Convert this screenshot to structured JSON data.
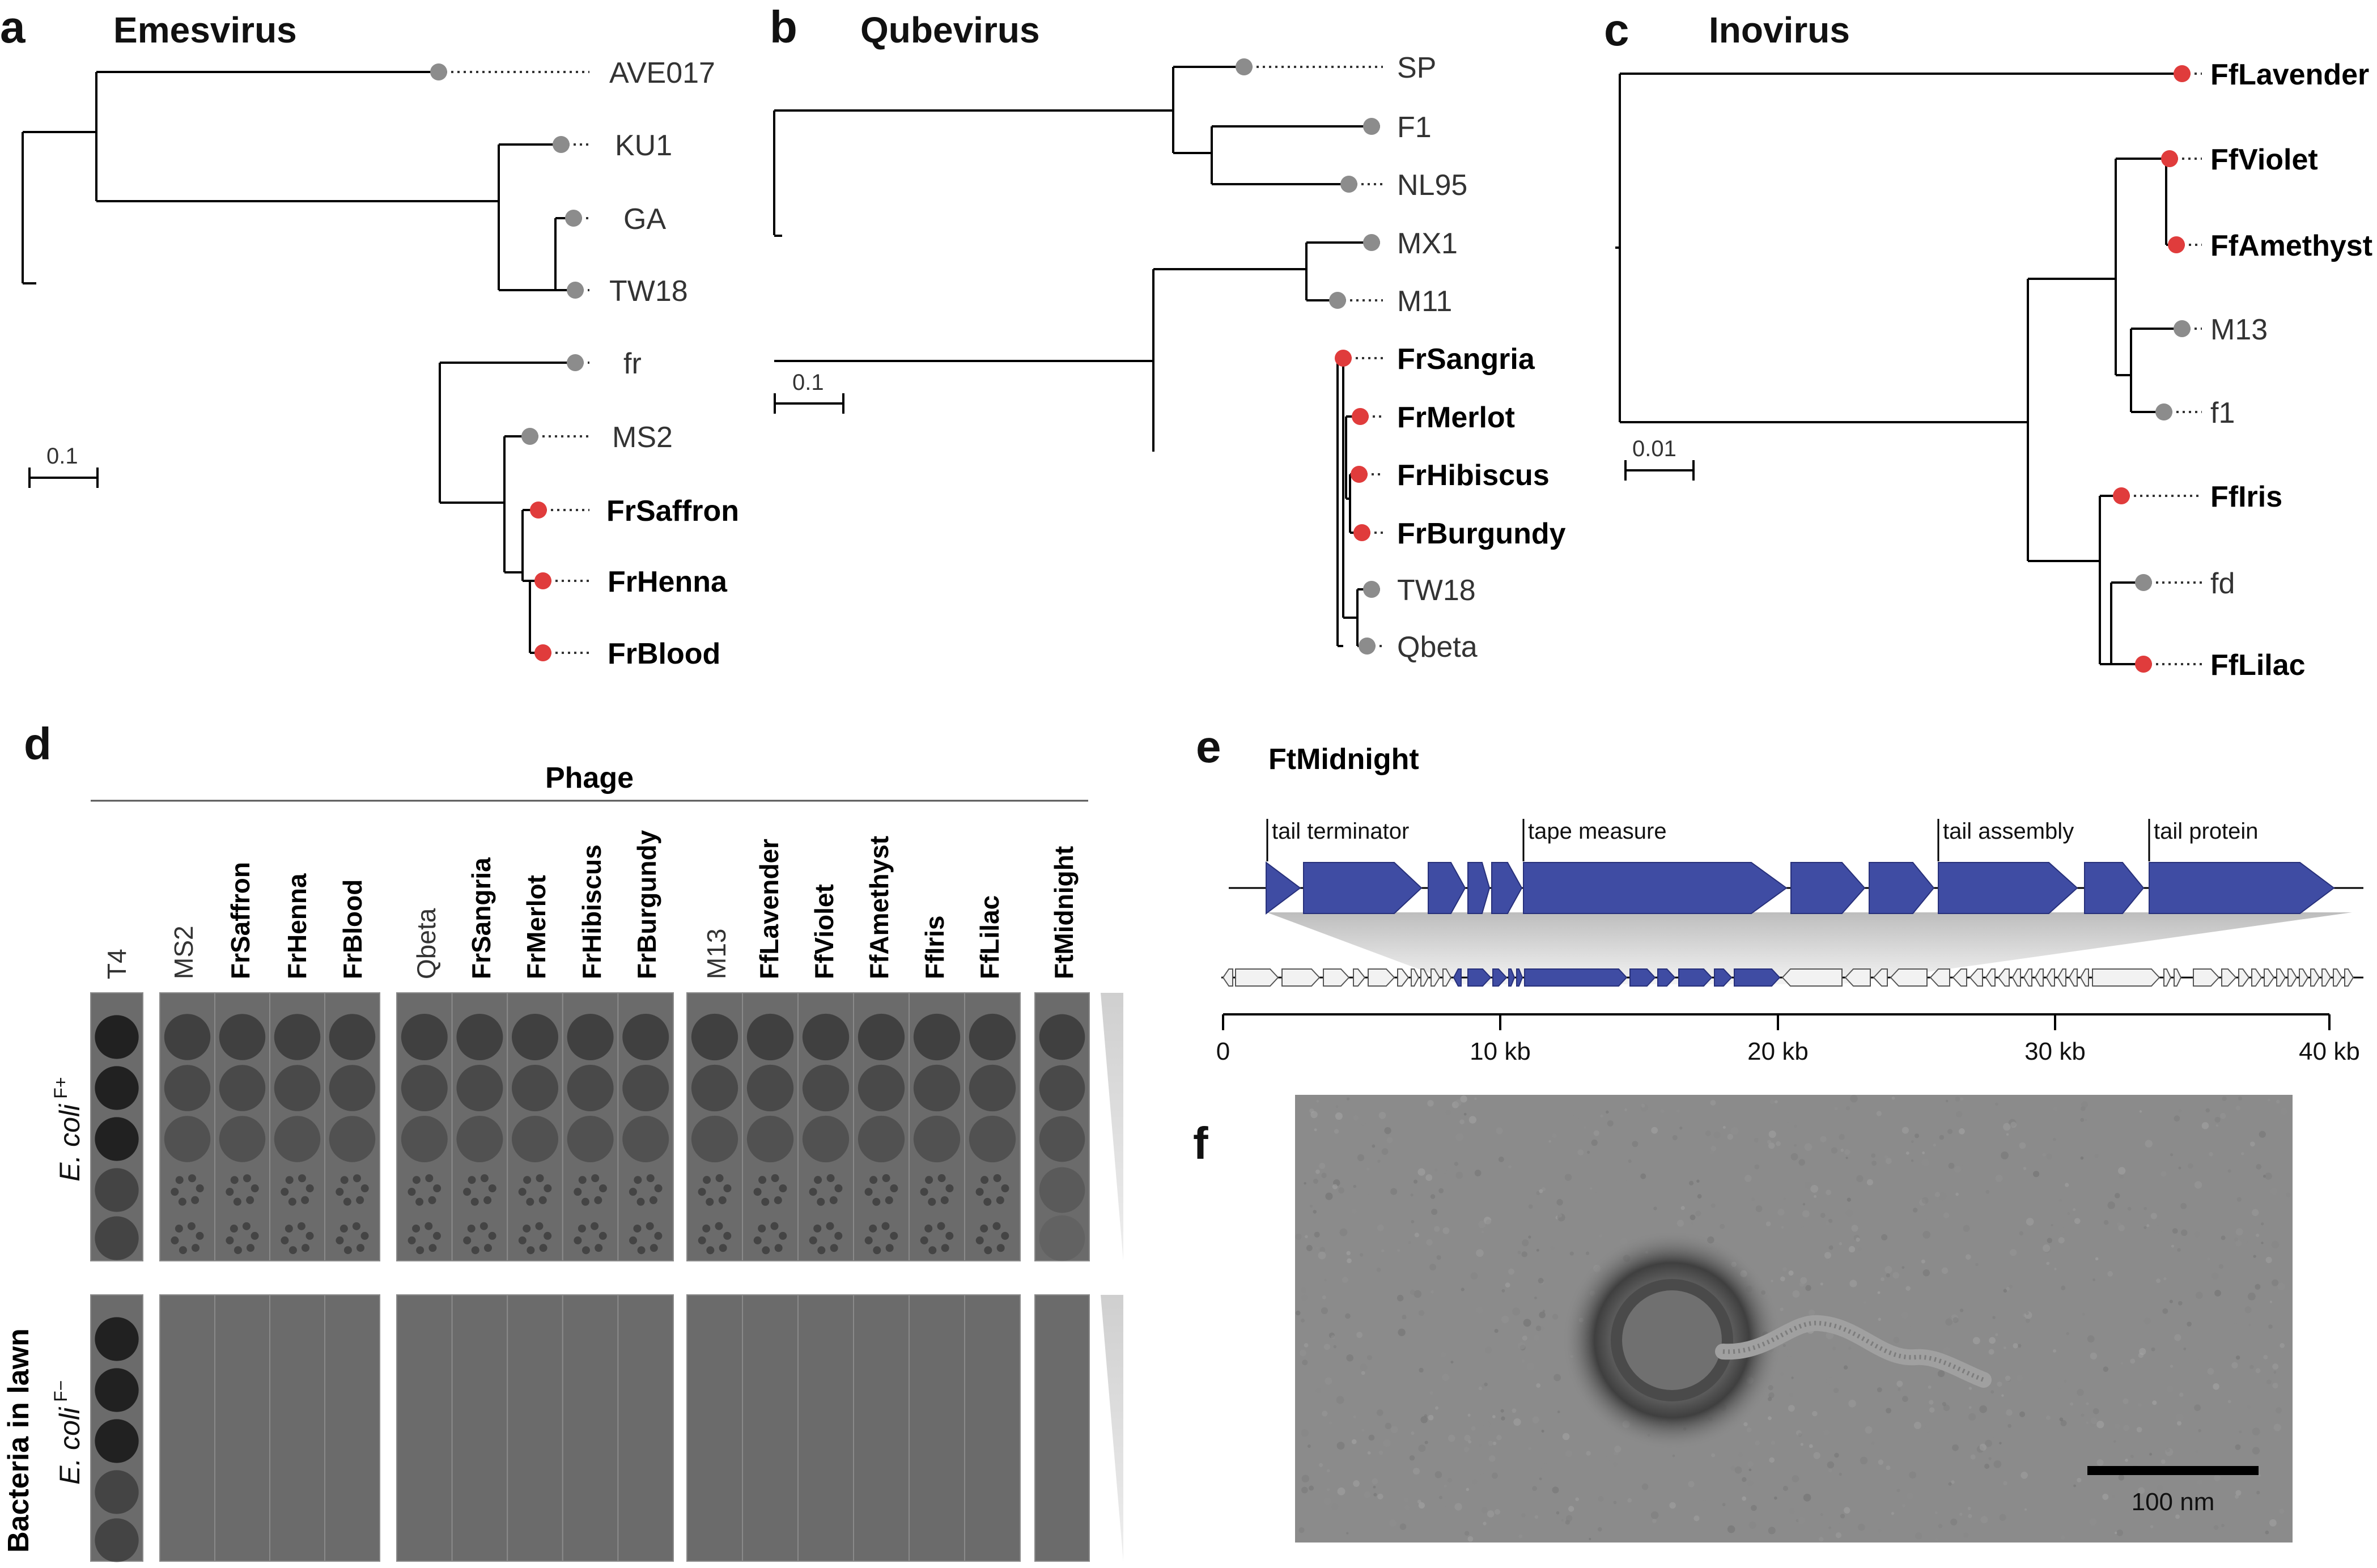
{
  "panels": {
    "a": {
      "letter": "a",
      "title": "Emesvirus",
      "leaves": [
        {
          "name": "AVE017",
          "highlight": false
        },
        {
          "name": "KU1",
          "highlight": false
        },
        {
          "name": "GA",
          "highlight": false
        },
        {
          "name": "TW18",
          "highlight": false
        },
        {
          "name": "fr",
          "highlight": false
        },
        {
          "name": "MS2",
          "highlight": false
        },
        {
          "name": "FrSaffron",
          "highlight": true
        },
        {
          "name": "FrHenna",
          "highlight": true
        },
        {
          "name": "FrBlood",
          "highlight": true
        }
      ],
      "scale_label": "0.1"
    },
    "b": {
      "letter": "b",
      "title": "Qubevirus",
      "leaves": [
        {
          "name": "SP",
          "highlight": false
        },
        {
          "name": "F1",
          "highlight": false
        },
        {
          "name": "NL95",
          "highlight": false
        },
        {
          "name": "MX1",
          "highlight": false
        },
        {
          "name": "M11",
          "highlight": false
        },
        {
          "name": "FrSangria",
          "highlight": true
        },
        {
          "name": "FrMerlot",
          "highlight": true
        },
        {
          "name": "FrHibiscus",
          "highlight": true
        },
        {
          "name": "FrBurgundy",
          "highlight": true
        },
        {
          "name": "TW18",
          "highlight": false
        },
        {
          "name": "Qbeta",
          "highlight": false
        }
      ],
      "scale_label": "0.1"
    },
    "c": {
      "letter": "c",
      "title": "Inovirus",
      "leaves": [
        {
          "name": "FfLavender",
          "highlight": true
        },
        {
          "name": "FfViolet",
          "highlight": true
        },
        {
          "name": "FfAmethyst",
          "highlight": true
        },
        {
          "name": "M13",
          "highlight": false
        },
        {
          "name": "f1",
          "highlight": false
        },
        {
          "name": "FfIris",
          "highlight": true
        },
        {
          "name": "fd",
          "highlight": false
        },
        {
          "name": "FfLilac",
          "highlight": true
        }
      ],
      "scale_label": "0.01"
    },
    "d": {
      "letter": "d",
      "phage_header": "Phage",
      "y_axis_label": "Bacteria in lawn",
      "strains": [
        {
          "italic": "E. coli",
          "superscript": "F+"
        },
        {
          "italic": "E. coli",
          "superscript": "F−"
        }
      ],
      "columns": [
        {
          "name": "T4",
          "bold": false
        },
        {
          "name": "MS2",
          "bold": false
        },
        {
          "name": "FrSaffron",
          "bold": true
        },
        {
          "name": "FrHenna",
          "bold": true
        },
        {
          "name": "FrBlood",
          "bold": true
        },
        {
          "name": "Qbeta",
          "bold": false
        },
        {
          "name": "FrSangria",
          "bold": true
        },
        {
          "name": "FrMerlot",
          "bold": true
        },
        {
          "name": "FrHibiscus",
          "bold": true
        },
        {
          "name": "FrBurgundy",
          "bold": true
        },
        {
          "name": "M13",
          "bold": false
        },
        {
          "name": "FfLavender",
          "bold": true
        },
        {
          "name": "FfViolet",
          "bold": true
        },
        {
          "name": "FfAmethyst",
          "bold": true
        },
        {
          "name": "FfIris",
          "bold": true
        },
        {
          "name": "FfLilac",
          "bold": true
        },
        {
          "name": "FtMidnight",
          "bold": true
        }
      ]
    },
    "e": {
      "letter": "e",
      "title": "FtMidnight",
      "gene_labels": [
        "tail terminator",
        "tape measure",
        "tail assembly",
        "tail protein"
      ],
      "axis_ticks": [
        "0",
        "10 kb",
        "20 kb",
        "30 kb",
        "40 kb"
      ]
    },
    "f": {
      "letter": "f",
      "scale_label": "100 nm"
    }
  },
  "colors": {
    "highlight_dot": "#e03c3c",
    "reference_dot": "#8c8c8c",
    "gene_blue": "#3f4ca3",
    "plate_background": "#6b6b6b"
  }
}
